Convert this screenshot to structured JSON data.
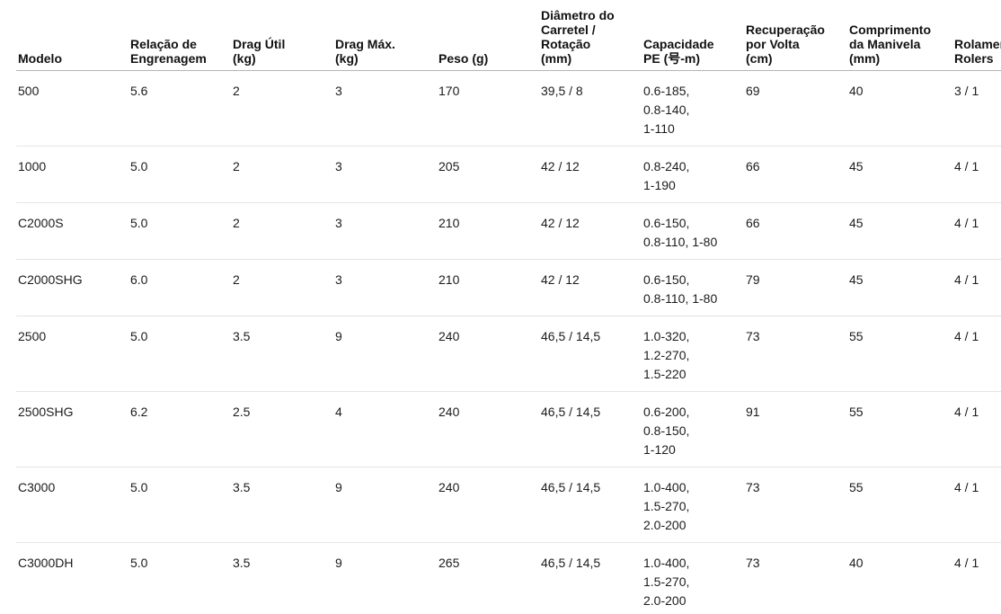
{
  "table": {
    "name": "reel-specifications",
    "columns": [
      {
        "label": "Modelo",
        "width": 125
      },
      {
        "label": "Relação de\nEngrenagem",
        "width": 114
      },
      {
        "label": "Drag Útil\n(kg)",
        "width": 114
      },
      {
        "label": "Drag Máx.\n(kg)",
        "width": 115
      },
      {
        "label": "Peso (g)",
        "width": 114
      },
      {
        "label": "Diâmetro do\nCarretel /\nRotação\n(mm)",
        "width": 114
      },
      {
        "label": "Capacidade\nPE (号-m)",
        "width": 114
      },
      {
        "label": "Recuperação\npor Volta\n(cm)",
        "width": 115
      },
      {
        "label": "Comprimento\nda Manivela\n(mm)",
        "width": 117
      },
      {
        "label": "Rolamentos\nRolers",
        "width": 114
      }
    ],
    "rows": [
      {
        "cells": [
          "500",
          "5.6",
          "2",
          "3",
          "170",
          "39,5 / 8",
          "0.6-185,\n0.8-140,\n1-110",
          "69",
          "40",
          "3 / 1"
        ]
      },
      {
        "cells": [
          "1000",
          "5.0",
          "2",
          "3",
          "205",
          "42 / 12",
          "0.8-240,\n1-190",
          "66",
          "45",
          "4 / 1"
        ]
      },
      {
        "cells": [
          "C2000S",
          "5.0",
          "2",
          "3",
          "210",
          "42 / 12",
          "0.6-150,\n0.8-110, 1-80",
          "66",
          "45",
          "4 / 1"
        ]
      },
      {
        "cells": [
          "C2000SHG",
          "6.0",
          "2",
          "3",
          "210",
          "42 / 12",
          "0.6-150,\n0.8-110, 1-80",
          "79",
          "45",
          "4 / 1"
        ]
      },
      {
        "cells": [
          "2500",
          "5.0",
          "3.5",
          "9",
          "240",
          "46,5 / 14,5",
          "1.0-320,\n1.2-270,\n1.5-220",
          "73",
          "55",
          "4 / 1"
        ]
      },
      {
        "cells": [
          "2500SHG",
          "6.2",
          "2.5",
          "4",
          "240",
          "46,5 / 14,5",
          "0.6-200,\n0.8-150,\n1-120",
          "91",
          "55",
          "4 / 1"
        ]
      },
      {
        "cells": [
          "C3000",
          "5.0",
          "3.5",
          "9",
          "240",
          "46,5 / 14,5",
          "1.0-400,\n1.5-270,\n2.0-200",
          "73",
          "55",
          "4 / 1"
        ]
      },
      {
        "cells": [
          "C3000DH",
          "5.0",
          "3.5",
          "9",
          "265",
          "46,5 / 14,5",
          "1.0-400,\n1.5-270,\n2.0-200",
          "73",
          "40",
          "4 / 1"
        ]
      }
    ]
  },
  "colors": {
    "background": "#ffffff",
    "text": "#1b1b1b",
    "header_border": "#b5b5b5",
    "row_border": "#e4e4e4"
  }
}
